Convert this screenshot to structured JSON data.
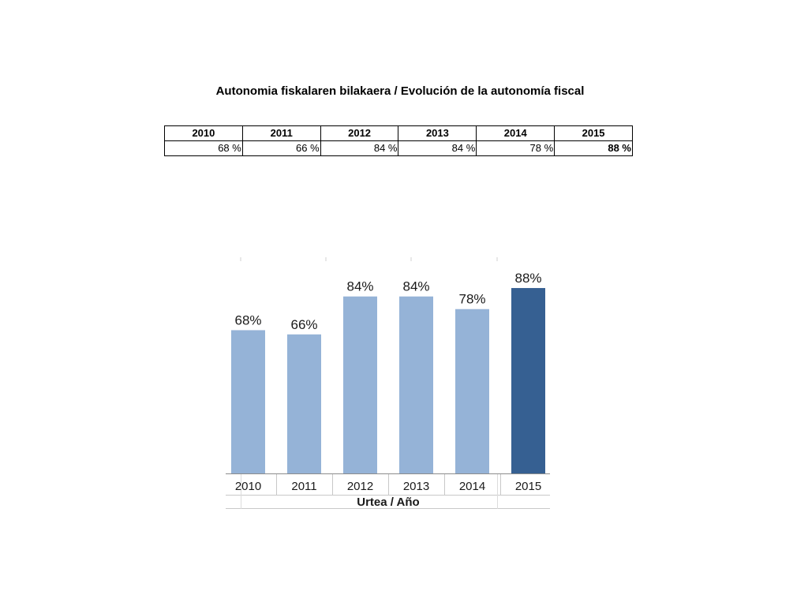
{
  "title": "Autonomia fiskalaren bilakaera / Evolución de la autonomía fiscal",
  "table": {
    "years": [
      "2010",
      "2011",
      "2012",
      "2013",
      "2014",
      "2015"
    ],
    "values": [
      "68 %",
      "66 %",
      "84 %",
      "84 %",
      "78 %",
      "88 %"
    ]
  },
  "colors": {
    "bar": "#95b3d7",
    "bar_highlight": "#366092"
  },
  "chart_data": {
    "type": "bar",
    "categories": [
      "2010",
      "2011",
      "2012",
      "2013",
      "2014",
      "2015"
    ],
    "values": [
      68,
      66,
      84,
      84,
      78,
      88
    ],
    "data_labels": [
      "68%",
      "66%",
      "84%",
      "84%",
      "78%",
      "88%"
    ],
    "highlight_category": "2015",
    "xlabel": "Urtea / Año",
    "ylabel": "",
    "ylim": [
      0,
      100
    ],
    "grid": false,
    "legend": "none"
  }
}
